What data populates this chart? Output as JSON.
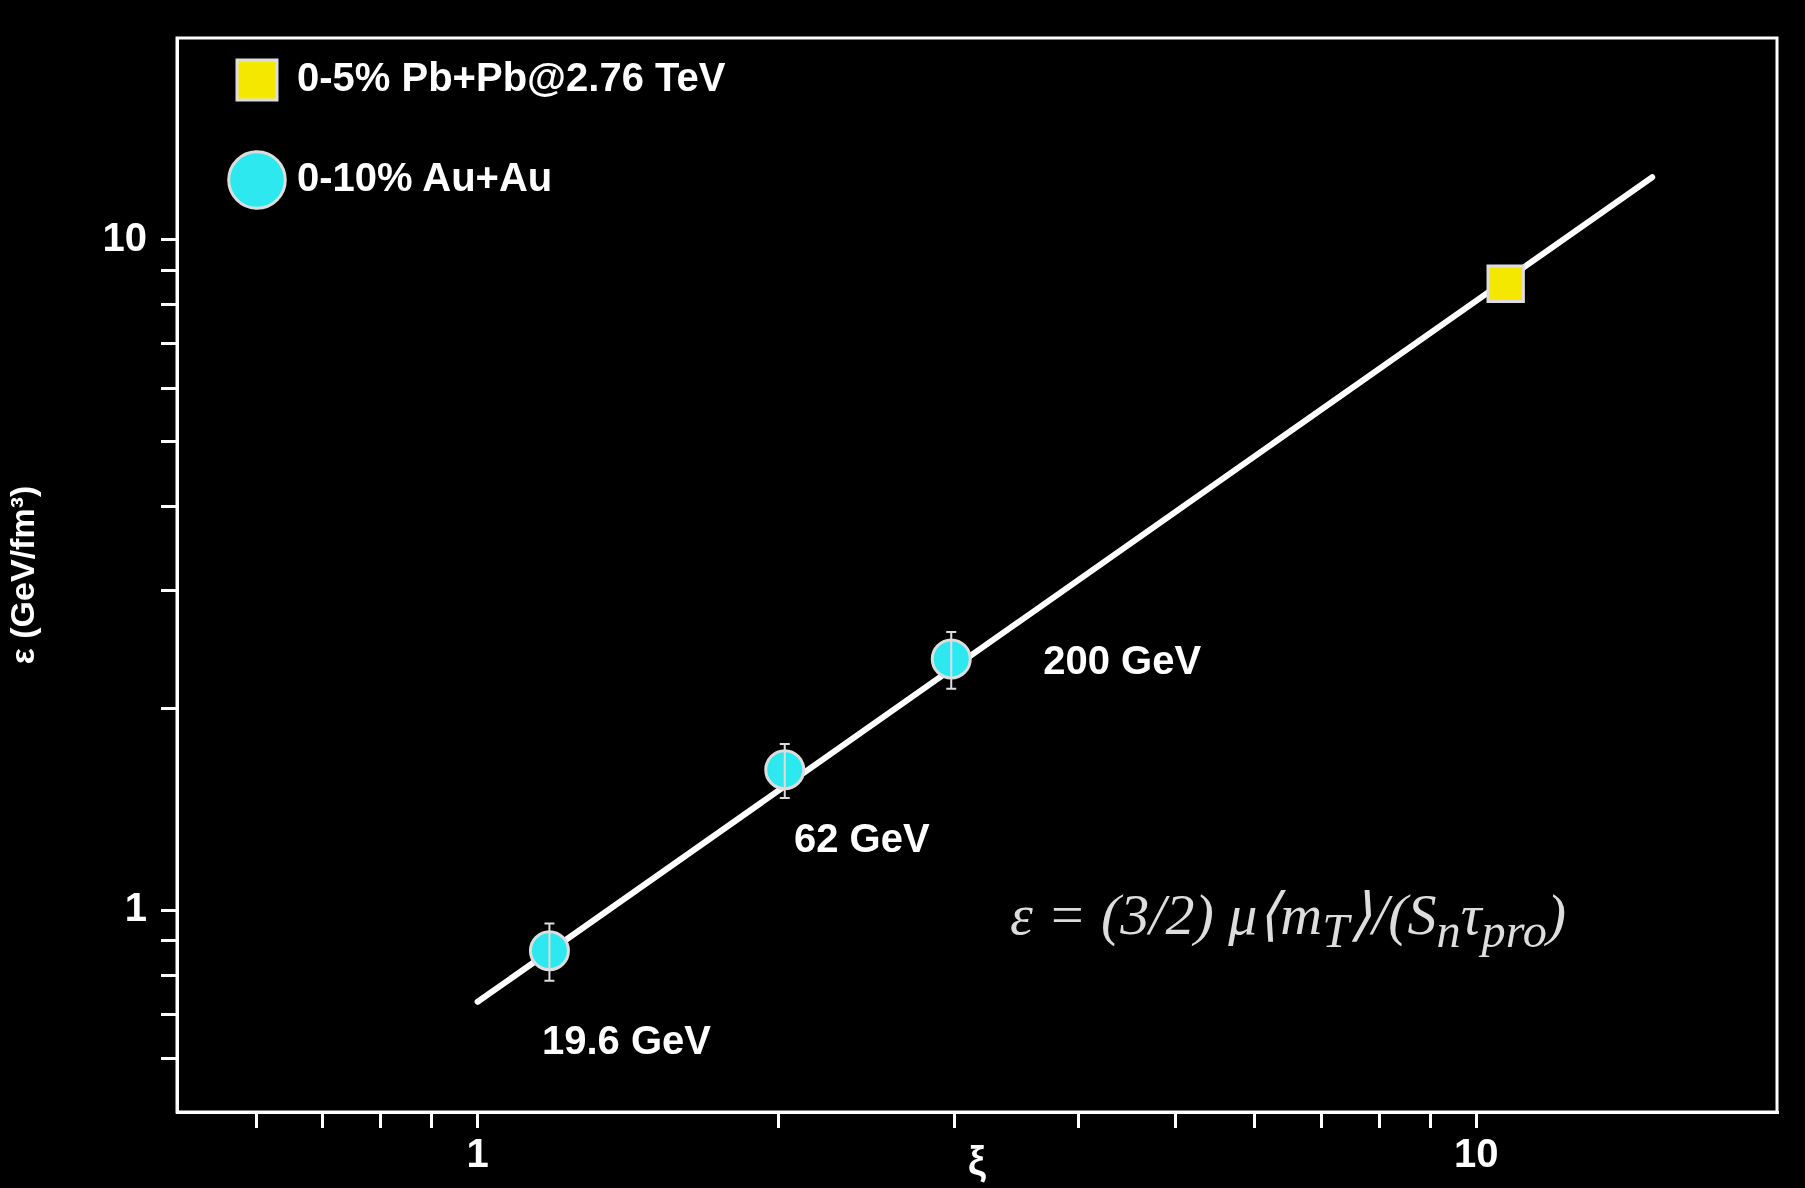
{
  "chart_data": {
    "type": "scatter",
    "xlabel": "ξ",
    "ylabel": "ε (GeV/fm³)",
    "log": "xy",
    "xlim": [
      0.5,
      20
    ],
    "ylim": [
      0.5,
      20
    ],
    "xticks": [
      {
        "value": 0.6,
        "label": null
      },
      {
        "value": 0.7,
        "label": null
      },
      {
        "value": 0.8,
        "label": null
      },
      {
        "value": 0.9,
        "label": null
      },
      1,
      {
        "value": 2,
        "label": null
      },
      {
        "value": 3,
        "label": null
      },
      {
        "value": 4,
        "label": null
      },
      {
        "value": 5,
        "label": null
      },
      {
        "value": 6,
        "label": null
      },
      {
        "value": 7,
        "label": null
      },
      {
        "value": 8,
        "label": null
      },
      {
        "value": 9,
        "label": null
      },
      10
    ],
    "yticks": [
      {
        "value": 0.6,
        "label": null
      },
      {
        "value": 0.7,
        "label": null
      },
      {
        "value": 0.8,
        "label": null
      },
      {
        "value": 0.9,
        "label": null
      },
      1,
      {
        "value": 2,
        "label": null
      },
      {
        "value": 3,
        "label": null
      },
      {
        "value": 4,
        "label": null
      },
      {
        "value": 5,
        "label": null
      },
      {
        "value": 6,
        "label": null
      },
      {
        "value": 7,
        "label": null
      },
      {
        "value": 8,
        "label": null
      },
      {
        "value": 9,
        "label": null
      },
      10
    ],
    "legend": "top left",
    "series": [
      {
        "name": "0-5% Pb+Pb@2.76 TeV",
        "color": "#f5e800",
        "marker": "square",
        "x": [
          10.7
        ],
        "values": [
          8.6
        ]
      },
      {
        "name": "0-10% Au+Au",
        "color": "#2ee8ef",
        "marker": "circle",
        "x": [
          1.18,
          2.03,
          2.98
        ],
        "values": [
          0.87,
          1.62,
          2.37
        ],
        "errors": [
          0.085,
          0.15,
          0.23
        ]
      },
      {
        "type": "line",
        "color": "#ffffff",
        "marker": "none",
        "x": [
          1,
          15
        ],
        "values": [
          0.73,
          12.4
        ]
      }
    ],
    "annotations": [
      {
        "text": "19.6 GeV",
        "x": 1.18,
        "y": 0.87
      },
      {
        "text": "62 GeV",
        "x": 2.03,
        "y": 1.62
      },
      {
        "text": "200 GeV",
        "x": 2.98,
        "y": 2.37
      },
      "ε = (3/2) μ⟨m$_{T}$⟩/(S$_{n}$τ$_{pro}$)"
    ]
  }
}
